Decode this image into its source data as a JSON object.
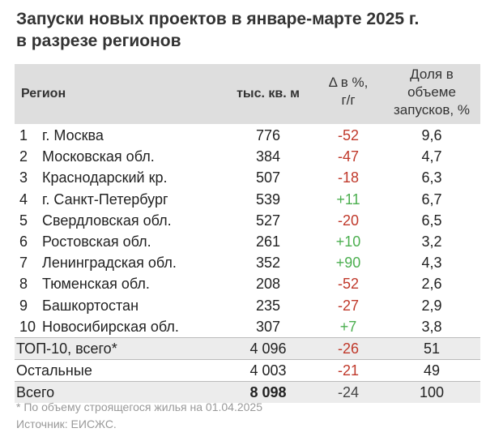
{
  "title_line1": "Запуски новых проектов в январе-марте 2025 г.",
  "title_line2": "в разрезе регионов",
  "header": {
    "region": "Регион",
    "area": "тыс. кв. м",
    "delta_l1": "Δ в %,",
    "delta_l2": "г/г",
    "share_l1": "Доля в",
    "share_l2": "объеме",
    "share_l3": "запусков, %"
  },
  "rows": [
    {
      "num": "1",
      "name": "г. Москва",
      "area": "776",
      "delta": "-52",
      "share": "9,6"
    },
    {
      "num": "2",
      "name": "Московская обл.",
      "area": "384",
      "delta": "-47",
      "share": "4,7"
    },
    {
      "num": "3",
      "name": "Краснодарский кр.",
      "area": "507",
      "delta": "-18",
      "share": "6,3"
    },
    {
      "num": "4",
      "name": "г. Санкт-Петербург",
      "area": "539",
      "delta": "+11",
      "share": "6,7"
    },
    {
      "num": "5",
      "name": "Свердловская обл.",
      "area": "527",
      "delta": "-20",
      "share": "6,5"
    },
    {
      "num": "6",
      "name": "Ростовская обл.",
      "area": "261",
      "delta": "+10",
      "share": "3,2"
    },
    {
      "num": "7",
      "name": "Ленинградская обл.",
      "area": "352",
      "delta": "+90",
      "share": "4,3"
    },
    {
      "num": "8",
      "name": "Тюменская обл.",
      "area": "208",
      "delta": "-52",
      "share": "2,6"
    },
    {
      "num": "9",
      "name": "Башкортостан",
      "area": "235",
      "delta": "-27",
      "share": "2,9"
    },
    {
      "num": "10",
      "name": "Новосибирская обл.",
      "area": "307",
      "delta": "+7",
      "share": "3,8"
    }
  ],
  "totals": [
    {
      "name": "ТОП-10, всего*",
      "area": "4 096",
      "delta": "-26",
      "share": "51"
    },
    {
      "name": "Остальные",
      "area": "4 003",
      "delta": "-21",
      "share": "49"
    },
    {
      "name": "Всего",
      "area": "8 098",
      "delta": "-24",
      "share": "100"
    }
  ],
  "footnote": "* По объему строящегося жилья на 01.04.2025",
  "source": "Источник: ЕИСЖС.",
  "colors": {
    "negative": "#c0392b",
    "positive": "#4caf50",
    "header_bg": "#dedede"
  }
}
